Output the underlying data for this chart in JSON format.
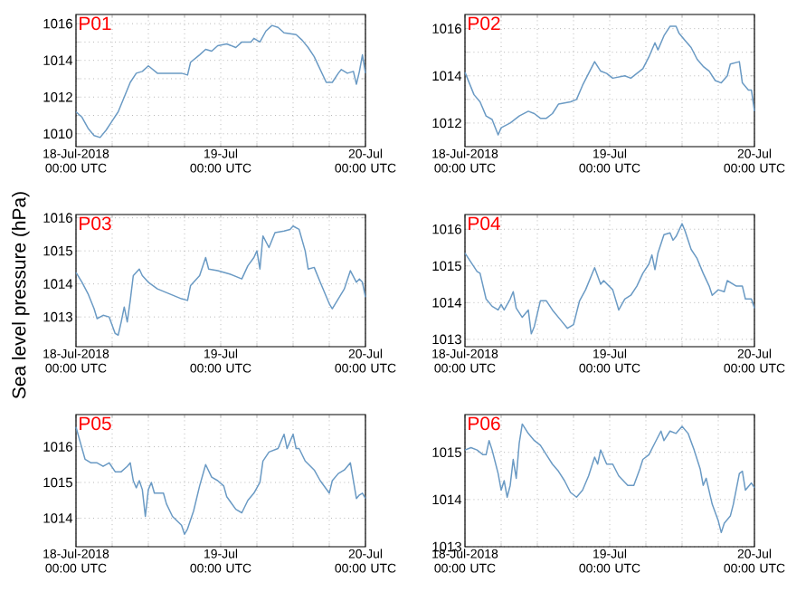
{
  "chart_data": [
    {
      "type": "line",
      "title": "P01",
      "color": "#6a9ac4",
      "grid": true,
      "xlim": [
        "2018-07-18T00:00",
        "2018-07-20T00:00"
      ],
      "xticks": [
        {
          "value": "2018-07-18T00:00",
          "label": "18-Jul-2018 00:00 UTC"
        },
        {
          "value": "2018-07-18T06:00",
          "label": null
        },
        {
          "value": "2018-07-18T12:00",
          "label": null
        },
        {
          "value": "2018-07-18T18:00",
          "label": null
        },
        {
          "value": "2018-07-19T00:00",
          "label": "19-Jul 00:00 UTC"
        },
        {
          "value": "2018-07-19T06:00",
          "label": null
        },
        {
          "value": "2018-07-19T12:00",
          "label": null
        },
        {
          "value": "2018-07-19T18:00",
          "label": null
        },
        {
          "value": "2018-07-20T00:00",
          "label": "20-Jul 00:00 UTC"
        }
      ],
      "ylim": [
        1009.3,
        1016.5
      ],
      "yticks": [
        1010,
        {
          "value": 1011,
          "label": null
        },
        1012,
        {
          "value": 1013,
          "label": null
        },
        1014,
        {
          "value": 1015,
          "label": null
        },
        1016
      ],
      "x": [
        "2018-07-18T00:00",
        "2018-07-18T01:00",
        "2018-07-18T02:00",
        "2018-07-18T03:00",
        "2018-07-18T04:00",
        "2018-07-18T05:00",
        "2018-07-18T06:00",
        "2018-07-18T07:00",
        "2018-07-18T08:00",
        "2018-07-18T09:00",
        "2018-07-18T10:00",
        "2018-07-18T11:00",
        "2018-07-18T12:00",
        "2018-07-18T13:30",
        "2018-07-18T15:30",
        "2018-07-18T17:30",
        "2018-07-18T18:30",
        "2018-07-18T19:00",
        "2018-07-18T20:30",
        "2018-07-18T21:30",
        "2018-07-18T22:30",
        "2018-07-18T23:30",
        "2018-07-19T01:00",
        "2018-07-19T02:30",
        "2018-07-19T03:30",
        "2018-07-19T05:00",
        "2018-07-19T05:30",
        "2018-07-19T06:30",
        "2018-07-19T07:30",
        "2018-07-19T08:30",
        "2018-07-19T09:30",
        "2018-07-19T10:30",
        "2018-07-19T12:30",
        "2018-07-19T13:30",
        "2018-07-19T14:30",
        "2018-07-19T15:30",
        "2018-07-19T16:30",
        "2018-07-19T17:30",
        "2018-07-19T18:30",
        "2018-07-19T19:30",
        "2018-07-19T20:00",
        "2018-07-19T21:00",
        "2018-07-19T22:00",
        "2018-07-19T22:30",
        "2018-07-19T23:00",
        "2018-07-19T23:30",
        "2018-07-20T00:00"
      ],
      "values": [
        1011.2,
        1010.9,
        1010.3,
        1009.9,
        1009.8,
        1010.2,
        1010.7,
        1011.2,
        1012.0,
        1012.8,
        1013.3,
        1013.4,
        1013.7,
        1013.3,
        1013.3,
        1013.3,
        1013.2,
        1013.9,
        1014.3,
        1014.6,
        1014.5,
        1014.8,
        1014.9,
        1014.7,
        1015.0,
        1015.0,
        1015.2,
        1015.0,
        1015.6,
        1015.9,
        1015.8,
        1015.5,
        1015.4,
        1015.1,
        1014.7,
        1014.2,
        1013.5,
        1012.8,
        1012.8,
        1013.3,
        1013.5,
        1013.3,
        1013.4,
        1012.7,
        1013.4,
        1014.3,
        1013.3
      ]
    },
    {
      "type": "line",
      "title": "P02",
      "color": "#6a9ac4",
      "grid": true,
      "xlim": [
        "2018-07-18T00:00",
        "2018-07-20T00:00"
      ],
      "xticks": [
        {
          "value": "2018-07-18T00:00",
          "label": "18-Jul-2018 00:00 UTC"
        },
        {
          "value": "2018-07-18T06:00",
          "label": null
        },
        {
          "value": "2018-07-18T12:00",
          "label": null
        },
        {
          "value": "2018-07-18T18:00",
          "label": null
        },
        {
          "value": "2018-07-19T00:00",
          "label": "19-Jul 00:00 UTC"
        },
        {
          "value": "2018-07-19T06:00",
          "label": null
        },
        {
          "value": "2018-07-19T12:00",
          "label": null
        },
        {
          "value": "2018-07-19T18:00",
          "label": null
        },
        {
          "value": "2018-07-20T00:00",
          "label": "20-Jul 00:00 UTC"
        }
      ],
      "ylim": [
        1011.0,
        1016.6
      ],
      "yticks": [
        1012,
        {
          "value": 1013,
          "label": null
        },
        1014,
        {
          "value": 1015,
          "label": null
        },
        1016
      ],
      "x": [
        "2018-07-18T00:00",
        "2018-07-18T01:30",
        "2018-07-18T02:30",
        "2018-07-18T03:30",
        "2018-07-18T04:30",
        "2018-07-18T05:30",
        "2018-07-18T06:00",
        "2018-07-18T07:30",
        "2018-07-18T09:00",
        "2018-07-18T10:30",
        "2018-07-18T11:30",
        "2018-07-18T12:30",
        "2018-07-18T13:30",
        "2018-07-18T14:30",
        "2018-07-18T15:30",
        "2018-07-18T17:30",
        "2018-07-18T18:30",
        "2018-07-18T19:30",
        "2018-07-18T20:30",
        "2018-07-18T21:30",
        "2018-07-18T22:30",
        "2018-07-18T23:30",
        "2018-07-19T00:30",
        "2018-07-19T02:30",
        "2018-07-19T03:30",
        "2018-07-19T04:30",
        "2018-07-19T05:30",
        "2018-07-19T06:30",
        "2018-07-19T07:30",
        "2018-07-19T08:00",
        "2018-07-19T09:00",
        "2018-07-19T10:00",
        "2018-07-19T11:00",
        "2018-07-19T11:30",
        "2018-07-19T12:30",
        "2018-07-19T13:30",
        "2018-07-19T14:30",
        "2018-07-19T15:30",
        "2018-07-19T16:30",
        "2018-07-19T17:30",
        "2018-07-19T18:30",
        "2018-07-19T19:30",
        "2018-07-19T20:00",
        "2018-07-19T21:30",
        "2018-07-19T22:00",
        "2018-07-19T23:00",
        "2018-07-19T23:30",
        "2018-07-20T00:00"
      ],
      "values": [
        1014.15,
        1013.2,
        1012.9,
        1012.3,
        1012.15,
        1011.5,
        1011.8,
        1012.0,
        1012.3,
        1012.5,
        1012.4,
        1012.2,
        1012.2,
        1012.4,
        1012.8,
        1012.9,
        1013.0,
        1013.6,
        1014.1,
        1014.6,
        1014.2,
        1014.1,
        1013.9,
        1014.0,
        1013.9,
        1014.1,
        1014.3,
        1014.8,
        1015.4,
        1015.1,
        1015.7,
        1016.1,
        1016.1,
        1015.8,
        1015.5,
        1015.2,
        1014.7,
        1014.4,
        1014.2,
        1013.8,
        1013.7,
        1014.0,
        1014.5,
        1014.6,
        1013.7,
        1013.4,
        1013.4,
        1012.5
      ]
    },
    {
      "type": "line",
      "title": "P03",
      "ylabel": "Sea level pressure (hPa)",
      "color": "#6a9ac4",
      "grid": true,
      "xlim": [
        "2018-07-18T00:00",
        "2018-07-20T00:00"
      ],
      "xticks": [
        {
          "value": "2018-07-18T00:00",
          "label": "18-Jul-2018 00:00 UTC"
        },
        {
          "value": "2018-07-18T06:00",
          "label": null
        },
        {
          "value": "2018-07-18T12:00",
          "label": null
        },
        {
          "value": "2018-07-18T18:00",
          "label": null
        },
        {
          "value": "2018-07-19T00:00",
          "label": "19-Jul 00:00 UTC"
        },
        {
          "value": "2018-07-19T06:00",
          "label": null
        },
        {
          "value": "2018-07-19T12:00",
          "label": null
        },
        {
          "value": "2018-07-19T18:00",
          "label": null
        },
        {
          "value": "2018-07-20T00:00",
          "label": "20-Jul 00:00 UTC"
        }
      ],
      "ylim": [
        1012.1,
        1016.1
      ],
      "yticks": [
        1013,
        1014,
        1015,
        1016
      ],
      "x": [
        "2018-07-18T00:00",
        "2018-07-18T01:00",
        "2018-07-18T02:00",
        "2018-07-18T03:00",
        "2018-07-18T03:30",
        "2018-07-18T04:30",
        "2018-07-18T05:30",
        "2018-07-18T06:30",
        "2018-07-18T07:00",
        "2018-07-18T07:30",
        "2018-07-18T08:00",
        "2018-07-18T08:30",
        "2018-07-18T09:00",
        "2018-07-18T09:30",
        "2018-07-18T10:30",
        "2018-07-18T11:00",
        "2018-07-18T12:00",
        "2018-07-18T13:30",
        "2018-07-18T15:30",
        "2018-07-18T17:30",
        "2018-07-18T18:30",
        "2018-07-18T19:00",
        "2018-07-18T20:30",
        "2018-07-18T21:30",
        "2018-07-18T22:00",
        "2018-07-18T23:30",
        "2018-07-19T01:30",
        "2018-07-19T03:30",
        "2018-07-19T04:30",
        "2018-07-19T05:30",
        "2018-07-19T06:00",
        "2018-07-19T06:30",
        "2018-07-19T07:00",
        "2018-07-19T08:00",
        "2018-07-19T09:00",
        "2018-07-19T10:30",
        "2018-07-19T11:30",
        "2018-07-19T12:00",
        "2018-07-19T13:00",
        "2018-07-19T14:00",
        "2018-07-19T14:30",
        "2018-07-19T15:30",
        "2018-07-19T16:30",
        "2018-07-19T18:00",
        "2018-07-19T18:30",
        "2018-07-19T19:30",
        "2018-07-19T20:30",
        "2018-07-19T21:30",
        "2018-07-19T22:30",
        "2018-07-19T23:00",
        "2018-07-19T23:30",
        "2018-07-20T00:00"
      ],
      "values": [
        1014.35,
        1014.05,
        1013.7,
        1013.25,
        1012.95,
        1013.05,
        1013.0,
        1012.5,
        1012.45,
        1012.85,
        1013.3,
        1012.85,
        1013.5,
        1014.25,
        1014.45,
        1014.25,
        1014.05,
        1013.85,
        1013.7,
        1013.55,
        1013.5,
        1013.95,
        1014.25,
        1014.8,
        1014.45,
        1014.4,
        1014.3,
        1014.15,
        1014.55,
        1014.8,
        1015.0,
        1014.45,
        1015.45,
        1015.1,
        1015.55,
        1015.6,
        1015.65,
        1015.75,
        1015.65,
        1015.0,
        1014.45,
        1014.5,
        1014.05,
        1013.4,
        1013.25,
        1013.55,
        1013.85,
        1014.4,
        1014.05,
        1014.15,
        1014.05,
        1013.6
      ]
    },
    {
      "type": "line",
      "title": "P04",
      "color": "#6a9ac4",
      "grid": true,
      "xlim": [
        "2018-07-18T00:00",
        "2018-07-20T00:00"
      ],
      "xticks": [
        {
          "value": "2018-07-18T00:00",
          "label": "18-Jul-2018 00:00 UTC"
        },
        {
          "value": "2018-07-18T06:00",
          "label": null
        },
        {
          "value": "2018-07-18T12:00",
          "label": null
        },
        {
          "value": "2018-07-18T18:00",
          "label": null
        },
        {
          "value": "2018-07-19T00:00",
          "label": "19-Jul 00:00 UTC"
        },
        {
          "value": "2018-07-19T06:00",
          "label": null
        },
        {
          "value": "2018-07-19T12:00",
          "label": null
        },
        {
          "value": "2018-07-19T18:00",
          "label": null
        },
        {
          "value": "2018-07-20T00:00",
          "label": "20-Jul 00:00 UTC"
        }
      ],
      "ylim": [
        1012.8,
        1016.4
      ],
      "yticks": [
        1013,
        1014,
        1015,
        1016
      ],
      "x": [
        "2018-07-18T00:00",
        "2018-07-18T01:00",
        "2018-07-18T02:00",
        "2018-07-18T02:30",
        "2018-07-18T03:30",
        "2018-07-18T04:30",
        "2018-07-18T05:30",
        "2018-07-18T06:00",
        "2018-07-18T06:30",
        "2018-07-18T07:30",
        "2018-07-18T08:00",
        "2018-07-18T08:30",
        "2018-07-18T09:30",
        "2018-07-18T10:30",
        "2018-07-18T11:00",
        "2018-07-18T11:30",
        "2018-07-18T12:30",
        "2018-07-18T13:30",
        "2018-07-18T14:30",
        "2018-07-18T16:00",
        "2018-07-18T17:00",
        "2018-07-18T18:00",
        "2018-07-18T19:00",
        "2018-07-18T20:00",
        "2018-07-18T21:30",
        "2018-07-18T22:30",
        "2018-07-18T23:00",
        "2018-07-19T00:30",
        "2018-07-19T01:30",
        "2018-07-19T02:30",
        "2018-07-19T03:30",
        "2018-07-19T04:30",
        "2018-07-19T05:30",
        "2018-07-19T06:30",
        "2018-07-19T07:00",
        "2018-07-19T07:30",
        "2018-07-19T08:00",
        "2018-07-19T09:00",
        "2018-07-19T10:00",
        "2018-07-19T10:30",
        "2018-07-19T11:00",
        "2018-07-19T12:00",
        "2018-07-19T12:30",
        "2018-07-19T13:30",
        "2018-07-19T14:30",
        "2018-07-19T15:30",
        "2018-07-19T16:30",
        "2018-07-19T17:00",
        "2018-07-19T18:00",
        "2018-07-19T19:00",
        "2018-07-19T19:30",
        "2018-07-19T21:00",
        "2018-07-19T22:00",
        "2018-07-19T22:30",
        "2018-07-19T23:30",
        "2018-07-20T00:00"
      ],
      "values": [
        1015.35,
        1015.1,
        1014.85,
        1014.8,
        1014.1,
        1013.9,
        1013.8,
        1013.95,
        1013.8,
        1014.1,
        1014.3,
        1013.85,
        1013.6,
        1013.8,
        1013.15,
        1013.35,
        1014.05,
        1014.05,
        1013.8,
        1013.5,
        1013.3,
        1013.4,
        1014.05,
        1014.35,
        1014.95,
        1014.5,
        1014.6,
        1014.35,
        1013.8,
        1014.1,
        1014.2,
        1014.45,
        1014.8,
        1015.05,
        1015.3,
        1014.9,
        1015.35,
        1015.85,
        1015.9,
        1015.7,
        1015.8,
        1016.15,
        1015.95,
        1015.45,
        1015.2,
        1014.8,
        1014.45,
        1014.2,
        1014.35,
        1014.3,
        1014.6,
        1014.45,
        1014.45,
        1014.1,
        1014.1,
        1013.85
      ]
    },
    {
      "type": "line",
      "title": "P05",
      "color": "#6a9ac4",
      "grid": true,
      "xlim": [
        "2018-07-18T00:00",
        "2018-07-20T00:00"
      ],
      "xticks": [
        {
          "value": "2018-07-18T00:00",
          "label": "18-Jul-2018 00:00 UTC"
        },
        {
          "value": "2018-07-18T06:00",
          "label": null
        },
        {
          "value": "2018-07-18T12:00",
          "label": null
        },
        {
          "value": "2018-07-18T18:00",
          "label": null
        },
        {
          "value": "2018-07-19T00:00",
          "label": "19-Jul 00:00 UTC"
        },
        {
          "value": "2018-07-19T06:00",
          "label": null
        },
        {
          "value": "2018-07-19T12:00",
          "label": null
        },
        {
          "value": "2018-07-19T18:00",
          "label": null
        },
        {
          "value": "2018-07-20T00:00",
          "label": "20-Jul 00:00 UTC"
        }
      ],
      "ylim": [
        1013.2,
        1016.9
      ],
      "yticks": [
        1014,
        1015,
        1016
      ],
      "x": [
        "2018-07-18T00:00",
        "2018-07-18T00:30",
        "2018-07-18T01:30",
        "2018-07-18T02:30",
        "2018-07-18T03:30",
        "2018-07-18T04:30",
        "2018-07-18T05:30",
        "2018-07-18T06:30",
        "2018-07-18T07:30",
        "2018-07-18T08:30",
        "2018-07-18T09:00",
        "2018-07-18T09:30",
        "2018-07-18T10:00",
        "2018-07-18T10:30",
        "2018-07-18T11:00",
        "2018-07-18T11:30",
        "2018-07-18T12:00",
        "2018-07-18T12:30",
        "2018-07-18T13:00",
        "2018-07-18T14:30",
        "2018-07-18T15:00",
        "2018-07-18T16:00",
        "2018-07-18T17:30",
        "2018-07-18T18:00",
        "2018-07-18T18:30",
        "2018-07-18T19:30",
        "2018-07-18T20:30",
        "2018-07-18T21:30",
        "2018-07-18T22:30",
        "2018-07-18T23:30",
        "2018-07-19T00:30",
        "2018-07-19T01:00",
        "2018-07-19T02:30",
        "2018-07-19T03:30",
        "2018-07-19T04:30",
        "2018-07-19T05:30",
        "2018-07-19T06:30",
        "2018-07-19T07:00",
        "2018-07-19T08:00",
        "2018-07-19T09:30",
        "2018-07-19T10:30",
        "2018-07-19T11:00",
        "2018-07-19T12:00",
        "2018-07-19T12:30",
        "2018-07-19T13:00",
        "2018-07-19T14:00",
        "2018-07-19T15:30",
        "2018-07-19T16:30",
        "2018-07-19T18:00",
        "2018-07-19T18:30",
        "2018-07-19T19:30",
        "2018-07-19T20:30",
        "2018-07-19T21:30",
        "2018-07-19T22:30",
        "2018-07-19T23:00",
        "2018-07-19T23:30",
        "2018-07-20T00:00"
      ],
      "values": [
        1016.55,
        1016.25,
        1015.65,
        1015.55,
        1015.55,
        1015.45,
        1015.55,
        1015.3,
        1015.3,
        1015.45,
        1015.55,
        1015.05,
        1014.85,
        1015.05,
        1014.8,
        1014.05,
        1014.8,
        1015.0,
        1014.7,
        1014.7,
        1014.4,
        1014.05,
        1013.8,
        1013.55,
        1013.7,
        1014.2,
        1014.9,
        1015.5,
        1015.15,
        1015.05,
        1014.9,
        1014.6,
        1014.25,
        1014.15,
        1014.5,
        1014.7,
        1015.0,
        1015.6,
        1015.85,
        1015.95,
        1016.35,
        1015.95,
        1016.35,
        1015.95,
        1015.95,
        1015.6,
        1015.35,
        1015.05,
        1014.7,
        1015.05,
        1015.25,
        1015.35,
        1015.55,
        1014.55,
        1014.65,
        1014.7,
        1014.55
      ]
    },
    {
      "type": "line",
      "title": "P06",
      "color": "#6a9ac4",
      "grid": true,
      "xlim": [
        "2018-07-18T00:00",
        "2018-07-20T00:00"
      ],
      "xticks": [
        {
          "value": "2018-07-18T00:00",
          "label": "18-Jul-2018 00:00 UTC"
        },
        {
          "value": "2018-07-18T06:00",
          "label": null
        },
        {
          "value": "2018-07-18T12:00",
          "label": null
        },
        {
          "value": "2018-07-18T18:00",
          "label": null
        },
        {
          "value": "2018-07-19T00:00",
          "label": "19-Jul 00:00 UTC"
        },
        {
          "value": "2018-07-19T06:00",
          "label": null
        },
        {
          "value": "2018-07-19T12:00",
          "label": null
        },
        {
          "value": "2018-07-19T18:00",
          "label": null
        },
        {
          "value": "2018-07-20T00:00",
          "label": "20-Jul 00:00 UTC"
        }
      ],
      "ylim": [
        1013.0,
        1015.8
      ],
      "yticks": [
        1013,
        1014,
        1015
      ],
      "x": [
        "2018-07-18T00:00",
        "2018-07-18T01:00",
        "2018-07-18T02:00",
        "2018-07-18T03:00",
        "2018-07-18T03:30",
        "2018-07-18T04:00",
        "2018-07-18T04:30",
        "2018-07-18T05:30",
        "2018-07-18T06:00",
        "2018-07-18T06:30",
        "2018-07-18T07:00",
        "2018-07-18T07:30",
        "2018-07-18T08:00",
        "2018-07-18T08:30",
        "2018-07-18T09:00",
        "2018-07-18T09:30",
        "2018-07-18T10:30",
        "2018-07-18T11:30",
        "2018-07-18T12:30",
        "2018-07-18T13:30",
        "2018-07-18T14:30",
        "2018-07-18T15:30",
        "2018-07-18T16:30",
        "2018-07-18T17:30",
        "2018-07-18T18:30",
        "2018-07-18T19:30",
        "2018-07-18T20:30",
        "2018-07-18T21:30",
        "2018-07-18T22:00",
        "2018-07-18T22:30",
        "2018-07-18T23:30",
        "2018-07-19T00:30",
        "2018-07-19T01:30",
        "2018-07-19T03:00",
        "2018-07-19T04:00",
        "2018-07-19T05:00",
        "2018-07-19T05:30",
        "2018-07-19T06:30",
        "2018-07-19T07:30",
        "2018-07-19T08:30",
        "2018-07-19T09:00",
        "2018-07-19T10:00",
        "2018-07-19T11:00",
        "2018-07-19T12:00",
        "2018-07-19T13:00",
        "2018-07-19T14:00",
        "2018-07-19T15:00",
        "2018-07-19T15:30",
        "2018-07-19T16:00",
        "2018-07-19T17:00",
        "2018-07-19T18:00",
        "2018-07-19T18:30",
        "2018-07-19T19:00",
        "2018-07-19T20:00",
        "2018-07-19T20:30",
        "2018-07-19T21:30",
        "2018-07-19T22:00",
        "2018-07-19T22:30",
        "2018-07-19T23:30",
        "2018-07-20T00:00"
      ],
      "values": [
        1015.05,
        1015.1,
        1015.05,
        1014.95,
        1014.95,
        1015.25,
        1015.05,
        1014.55,
        1014.2,
        1014.4,
        1014.05,
        1014.3,
        1014.85,
        1014.45,
        1015.2,
        1015.6,
        1015.4,
        1015.25,
        1015.15,
        1014.95,
        1014.75,
        1014.6,
        1014.4,
        1014.15,
        1014.05,
        1014.2,
        1014.5,
        1014.9,
        1014.75,
        1015.05,
        1014.75,
        1014.75,
        1014.5,
        1014.3,
        1014.3,
        1014.65,
        1014.85,
        1014.95,
        1015.2,
        1015.45,
        1015.25,
        1015.45,
        1015.4,
        1015.55,
        1015.4,
        1015.05,
        1014.65,
        1014.3,
        1014.45,
        1013.9,
        1013.55,
        1013.3,
        1013.5,
        1013.65,
        1013.9,
        1014.55,
        1014.6,
        1014.2,
        1014.35,
        1014.25
      ]
    }
  ]
}
